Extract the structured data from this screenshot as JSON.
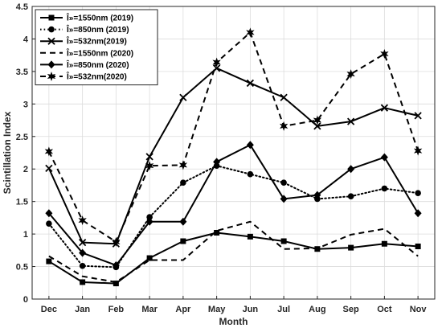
{
  "chart_data": {
    "type": "line",
    "title": "",
    "xlabel": "Month",
    "ylabel": "Scintillation Index",
    "categories": [
      "Dec",
      "Jan",
      "Feb",
      "Mar",
      "Apr",
      "May",
      "Jun",
      "Jul",
      "Aug",
      "Sep",
      "Oct",
      "Nov"
    ],
    "ylim": [
      0,
      4.5
    ],
    "yticks": [
      "0",
      "0.5",
      "1",
      "1.5",
      "2",
      "2.5",
      "3",
      "3.5",
      "4",
      "4.5"
    ],
    "grid": true,
    "legend_position": "top-left",
    "series": [
      {
        "name": "Î»=1550nm (2019)",
        "line": "solid",
        "marker": "square",
        "values": [
          0.58,
          0.26,
          0.24,
          0.63,
          0.89,
          1.02,
          0.96,
          0.89,
          0.77,
          0.79,
          0.85,
          0.81
        ]
      },
      {
        "name": "Î»=850nm (2019)",
        "line": "dotted",
        "marker": "circle",
        "values": [
          1.16,
          0.51,
          0.49,
          1.26,
          1.79,
          2.05,
          1.92,
          1.79,
          1.54,
          1.58,
          1.7,
          1.63
        ]
      },
      {
        "name": "Î»=532nm(2019)",
        "line": "solid",
        "marker": "x",
        "values": [
          2.01,
          0.87,
          0.85,
          2.19,
          3.1,
          3.55,
          3.32,
          3.1,
          2.66,
          2.73,
          2.94,
          2.82
        ]
      },
      {
        "name": "Î»=1550nm (2020)",
        "line": "dashed",
        "marker": "none",
        "values": [
          0.66,
          0.35,
          0.26,
          0.6,
          0.6,
          1.05,
          1.19,
          0.77,
          0.78,
          0.99,
          1.08,
          0.66
        ]
      },
      {
        "name": "Î»=850nm (2020)",
        "line": "solid",
        "marker": "diamond",
        "values": [
          1.32,
          0.71,
          0.52,
          1.19,
          1.19,
          2.11,
          2.37,
          1.54,
          1.6,
          2.0,
          2.18,
          1.32
        ]
      },
      {
        "name": "Î»=532nm(2020)",
        "line": "dashed",
        "marker": "star",
        "values": [
          2.27,
          1.21,
          0.88,
          2.05,
          2.06,
          3.64,
          4.1,
          2.66,
          2.75,
          3.46,
          3.77,
          2.28
        ]
      }
    ],
    "colors": {
      "series": "#000000",
      "grid": "#dcdcdc",
      "axis": "#262626"
    }
  }
}
